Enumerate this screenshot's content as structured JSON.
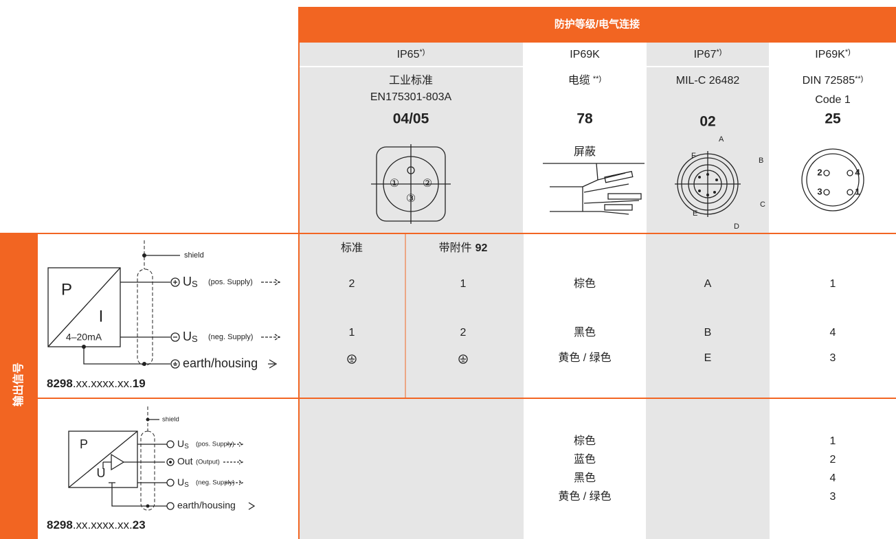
{
  "header": {
    "title": "防护等级/电气连接"
  },
  "columns": [
    {
      "protection": "IP65",
      "protection_note": "*)",
      "lines": [
        "工业标准",
        "EN175301-803A"
      ],
      "code": "04/05",
      "pins": [
        "①",
        "②",
        "③"
      ]
    },
    {
      "protection": "IP69K",
      "lines": [
        "电缆"
      ],
      "line_note": "**)",
      "code": "78",
      "label": "屏蔽"
    },
    {
      "protection": "IP67",
      "protection_note": "*)",
      "lines": [
        "MIL-C 26482"
      ],
      "code": "02",
      "pins": [
        "A",
        "B",
        "C",
        "D",
        "E",
        "F"
      ]
    },
    {
      "protection": "IP69K",
      "protection_note": "*)",
      "lines": [
        "DIN 72585",
        "Code 1"
      ],
      "line_note": "**)",
      "code": "25",
      "pins": [
        "2",
        "4",
        "3",
        "1"
      ]
    }
  ],
  "row_group_label": "输出信号",
  "rows": [
    {
      "diagram": {
        "shield": "shield",
        "p": "P",
        "i": "I",
        "range": "4–20mA",
        "signals": [
          {
            "symbol": "U",
            "sub": "S",
            "note": "(pos. Supply)"
          },
          {
            "symbol": "U",
            "sub": "S",
            "note": "(neg. Supply)"
          }
        ],
        "earth": "earth/housing"
      },
      "part": {
        "prefix": "8298",
        "middle": ".xx.xxxx.xx.",
        "suffix": "19"
      },
      "subheaders": [
        "标准",
        "带附件"
      ],
      "accessory_no": "92",
      "cells": [
        [
          "2",
          "1",
          "棕色",
          "A",
          "1"
        ],
        [
          "1",
          "2",
          "黑色",
          "B",
          "4"
        ],
        [
          "黄色 / 绿色",
          "E",
          "3"
        ]
      ]
    },
    {
      "diagram": {
        "shield": "shield",
        "p": "P",
        "u": "U",
        "signals": [
          {
            "symbol": "U",
            "sub": "S",
            "note": "(pos. Supply)"
          },
          {
            "symbol": "Out",
            "note": "(Output)"
          },
          {
            "symbol": "U",
            "sub": "S",
            "note": "(neg. Supply)"
          }
        ],
        "earth": "earth/housing"
      },
      "part": {
        "prefix": "8298",
        "middle": ".xx.xxxx.xx.",
        "suffix": "23"
      },
      "cells": [
        [
          "棕色",
          "1"
        ],
        [
          "蓝色",
          "2"
        ],
        [
          "黑色",
          "4"
        ],
        [
          "黄色 / 绿色",
          "3"
        ]
      ]
    }
  ]
}
